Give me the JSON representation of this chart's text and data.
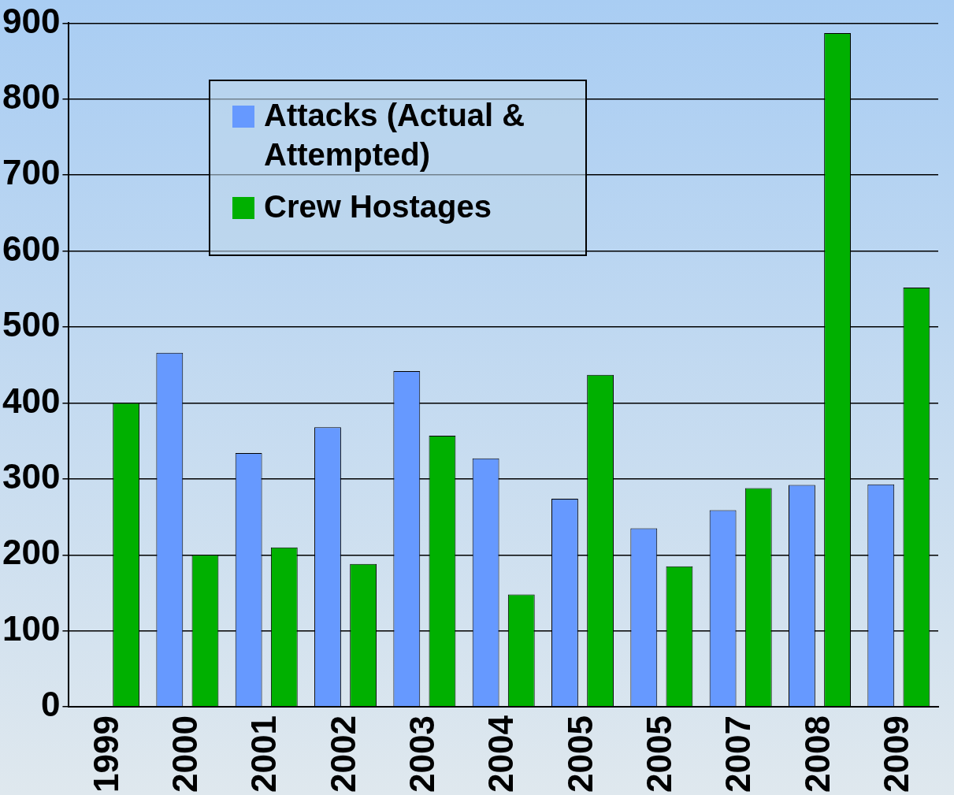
{
  "chart_data": {
    "type": "bar",
    "categories": [
      "1999",
      "2000",
      "2001",
      "2002",
      "2003",
      "2004",
      "2005",
      "2005",
      "2007",
      "2008",
      "2009"
    ],
    "series": [
      {
        "name": "Attacks (Actual & Attempted)",
        "color": "#6699ff",
        "values": [
          null,
          466,
          334,
          368,
          442,
          327,
          274,
          235,
          259,
          292,
          293
        ]
      },
      {
        "name": "Crew Hostages",
        "color": "#00b000",
        "values": [
          400,
          200,
          210,
          188,
          357,
          148,
          437,
          185,
          288,
          887,
          552
        ]
      }
    ],
    "ylim": [
      0,
      900
    ],
    "yticks": [
      0,
      100,
      200,
      300,
      400,
      500,
      600,
      700,
      800,
      900
    ],
    "grid": "y",
    "legend": "top left"
  }
}
